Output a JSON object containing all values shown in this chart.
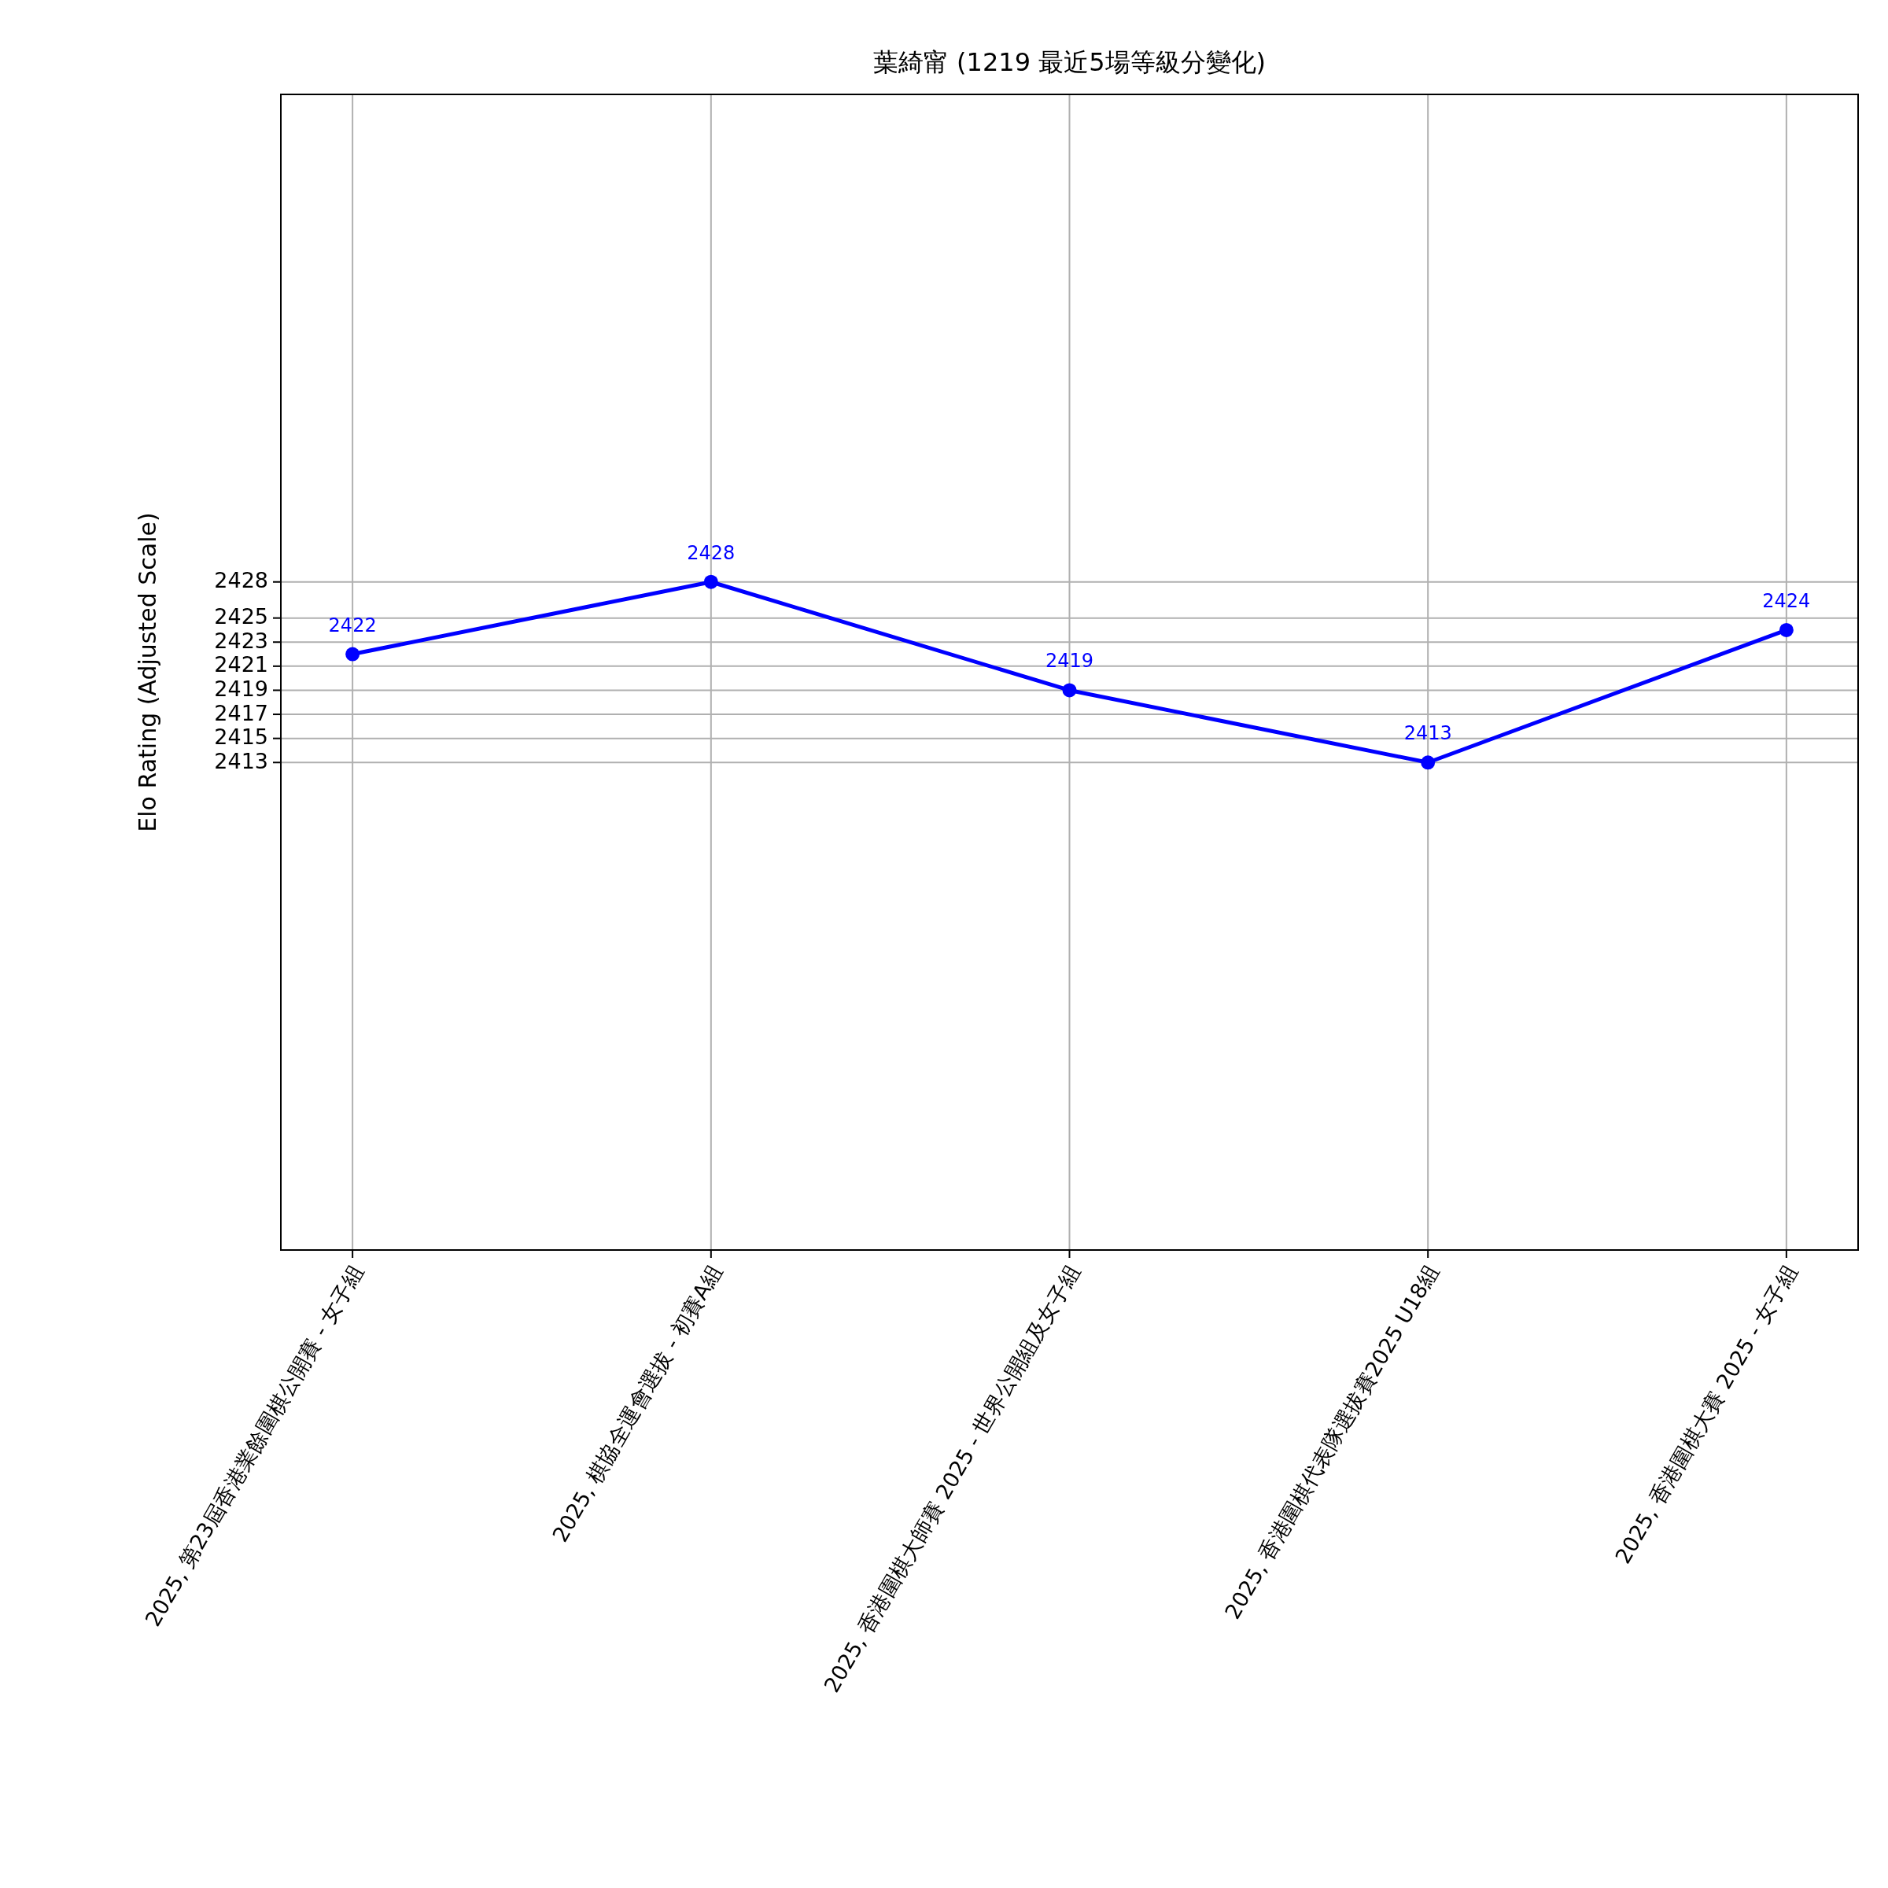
{
  "chart_data": {
    "type": "line",
    "title": "葉綺甯 (1219 最近5場等級分變化)",
    "ylabel": "Elo Rating (Adjusted Scale)",
    "categories": [
      "2025, 第23屆香港業餘圍棋公開賽 - 女子組",
      "2025, 棋協全運會選拔 - 初賽A組",
      "2025, 香港圍棋大師賽 2025 - 世界公開組及女子組",
      "2025, 香港圍棋代表隊選拔賽2025 U18組",
      "2025, 香港圍棋大賽 2025 - 女子組"
    ],
    "series": [
      {
        "color": "#0000ff",
        "values": [
          2422,
          2428,
          2419,
          2413,
          2424
        ]
      }
    ],
    "ylim": [
      2372.5,
      2468.5
    ],
    "yticks": [
      2413,
      2415,
      2417,
      2419,
      2421,
      2423,
      2425,
      2428
    ],
    "data_labels": true,
    "grid": true,
    "marker": "circle",
    "line_style": "solid"
  }
}
